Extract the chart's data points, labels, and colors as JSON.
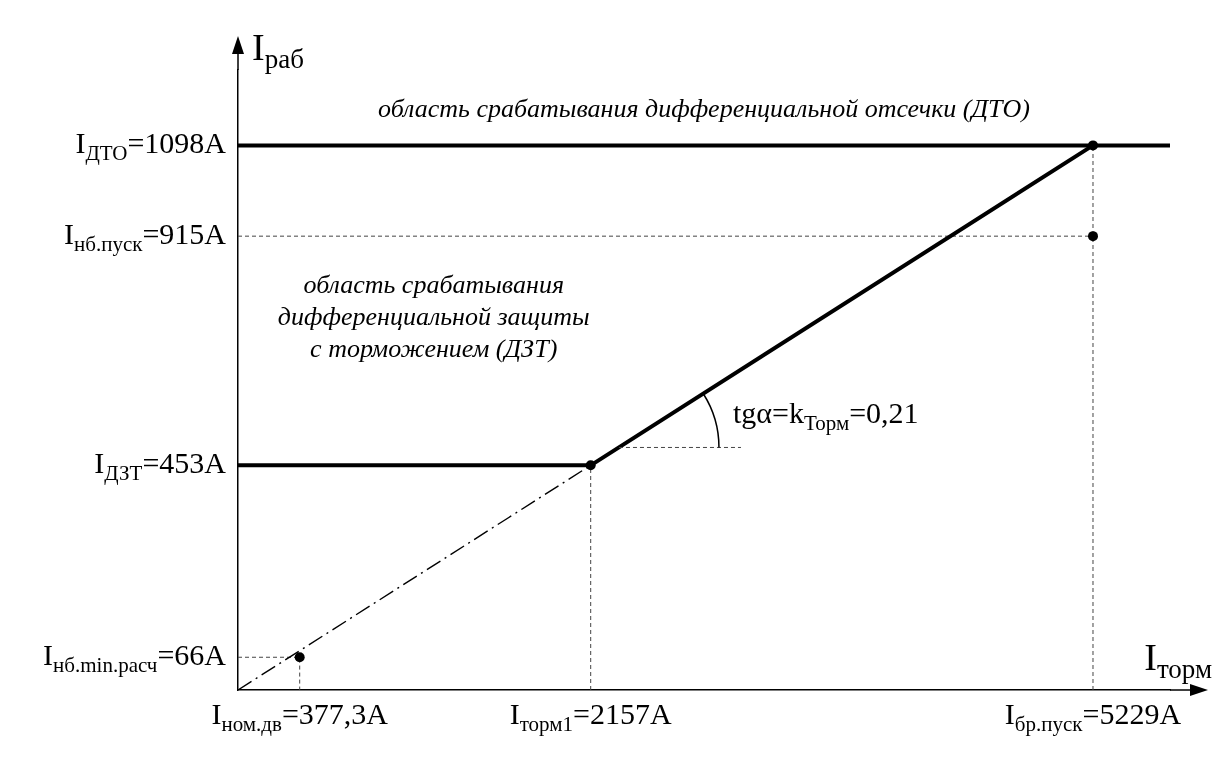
{
  "chart_data": {
    "type": "line",
    "xlabel": "I$_{торм}$",
    "ylabel": "I$_{раб}$",
    "xlim": [
      0,
      5700
    ],
    "ylim": [
      0,
      1250
    ],
    "xticks": [
      {
        "value": 377.3,
        "label": "I$_{ном.дв}$=377,3А"
      },
      {
        "value": 2157,
        "label": "I$_{торм1}$=2157А"
      },
      {
        "value": 5229,
        "label": "I$_{бр.пуск}$=5229А"
      }
    ],
    "yticks": [
      {
        "value": 66,
        "label": "I$_{нб.min.расч}$=66А"
      },
      {
        "value": 453,
        "label": "I$_{ДЗТ}$=453А"
      },
      {
        "value": 915,
        "label": "I$_{нб.пуск}$=915А"
      },
      {
        "value": 1098,
        "label": "I$_{ДТО}$=1098А"
      }
    ],
    "series": [
      {
        "type": "line",
        "color": "#000000",
        "x": [
          0,
          2157,
          5229
        ],
        "values": [
          453,
          453,
          1098
        ],
        "line_style": "solid",
        "marker": "none"
      },
      {
        "type": "line",
        "color": "#000000",
        "x": [
          0,
          2157
        ],
        "values": [
          0,
          453
        ],
        "line_style": "dashed",
        "marker": "none"
      },
      {
        "type": "line",
        "color": "#444444",
        "x": [
          0,
          377.3,
          377.3
        ],
        "values": [
          66,
          66,
          0
        ],
        "line_style": "dotted",
        "marker": "none"
      },
      {
        "type": "line",
        "color": "#444444",
        "x": [
          2157,
          2157
        ],
        "values": [
          0,
          453
        ],
        "line_style": "dotted",
        "marker": "none"
      },
      {
        "type": "line",
        "color": "#444444",
        "x": [
          0,
          5229
        ],
        "values": [
          915,
          915
        ],
        "line_style": "dotted",
        "marker": "none"
      },
      {
        "type": "line",
        "color": "#444444",
        "x": [
          5229,
          5229
        ],
        "values": [
          0,
          1098
        ],
        "line_style": "dotted",
        "marker": "none"
      },
      {
        "type": "scatter",
        "color": "#000000",
        "x": [
          377.3,
          2157,
          5229,
          5229
        ],
        "values": [
          66,
          453,
          1098,
          915
        ],
        "marker": "circle"
      }
    ],
    "ref_lines": [
      {
        "axis": "y",
        "value": 1098,
        "color": "#000000",
        "line_style": "solid"
      }
    ],
    "annotations": [
      "область срабатывания дифференциальной отсечки (ДТО)",
      "область срабатывания дифференциальной защиты с торможением (ДЗТ)",
      {
        "text": "tgα=k$_{Торм}$=0,21",
        "x": 2330,
        "y": 489
      }
    ]
  }
}
